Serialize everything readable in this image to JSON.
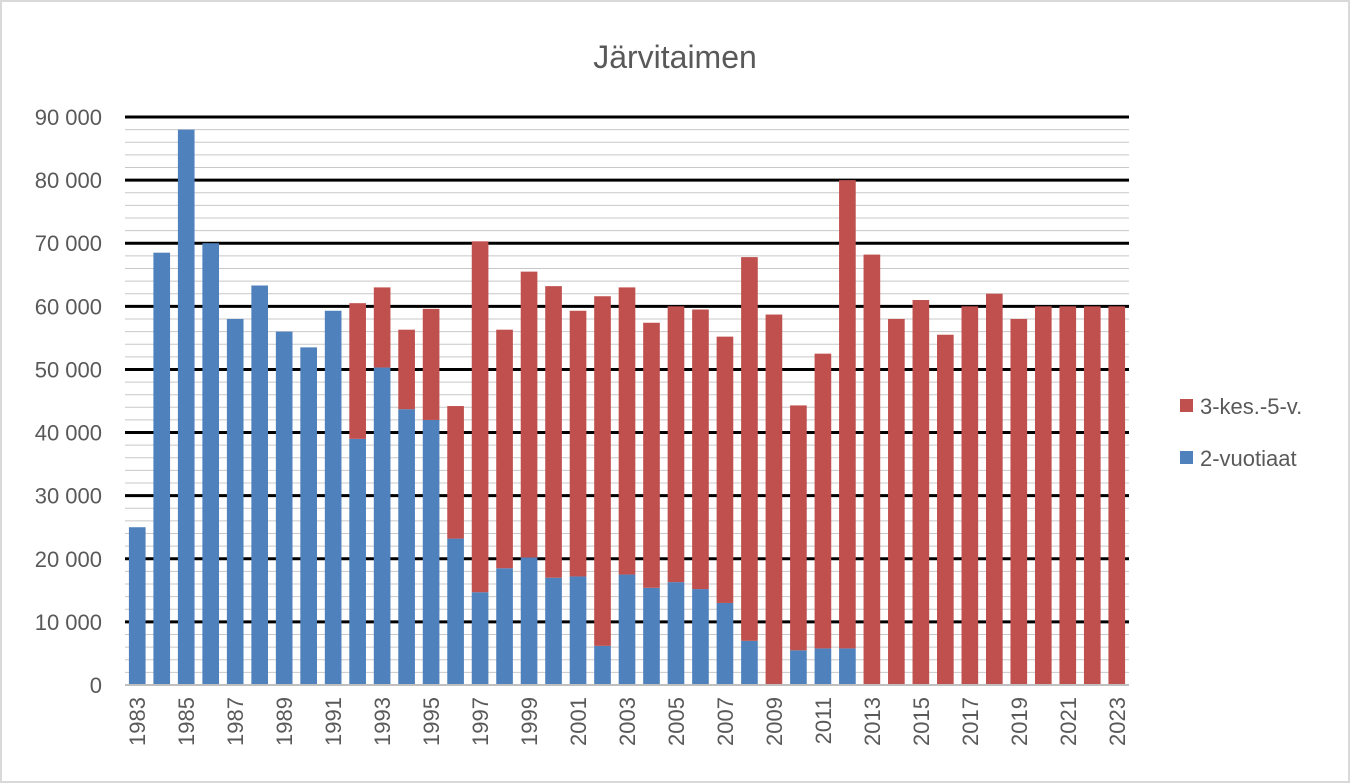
{
  "chart_data": {
    "type": "bar",
    "stacked": true,
    "title": "Järvitaimen",
    "xlabel": "",
    "ylabel": "",
    "ylim": [
      0,
      90000
    ],
    "y_major_step": 10000,
    "y_minor_step": 2000,
    "y_tick_labels": [
      "0",
      "10 000",
      "20 000",
      "30 000",
      "40 000",
      "50 000",
      "60 000",
      "70 000",
      "80 000",
      "90 000"
    ],
    "grid": true,
    "legend_position": "right",
    "categories": [
      "1983",
      "1984",
      "1985",
      "1986",
      "1987",
      "1988",
      "1989",
      "1990",
      "1991",
      "1992",
      "1993",
      "1994",
      "1995",
      "1996",
      "1997",
      "1998",
      "1999",
      "2000",
      "2001",
      "2002",
      "2003",
      "2004",
      "2005",
      "2006",
      "2007",
      "2008",
      "2009",
      "2010",
      "2011",
      "2012",
      "2013",
      "2014",
      "2015",
      "2016",
      "2017",
      "2018",
      "2019",
      "2020",
      "2021",
      "2022",
      "2023"
    ],
    "x_tick_labels": [
      "1983",
      "1985",
      "1987",
      "1989",
      "1991",
      "1993",
      "1995",
      "1997",
      "1999",
      "2001",
      "2003",
      "2005",
      "2007",
      "2009",
      "2011",
      "2013",
      "2015",
      "2017",
      "2019",
      "2021",
      "2023"
    ],
    "series": [
      {
        "name": "2-vuotiaat",
        "color": "#4f81bd",
        "values": [
          25000,
          68500,
          88000,
          70000,
          58000,
          63300,
          56000,
          53500,
          59300,
          39000,
          50300,
          43700,
          42000,
          23200,
          14700,
          18500,
          20200,
          17000,
          17200,
          6200,
          17500,
          15400,
          16300,
          15200,
          13000,
          7000,
          0,
          5500,
          5800,
          5800,
          0,
          0,
          0,
          0,
          0,
          0,
          0,
          0,
          0,
          0,
          0
        ]
      },
      {
        "name": "3-kes.-5-v.",
        "color": "#c0504d",
        "values": [
          0,
          0,
          0,
          0,
          0,
          0,
          0,
          0,
          0,
          21500,
          12700,
          12600,
          17600,
          21000,
          55600,
          37800,
          45300,
          46200,
          42100,
          55400,
          45500,
          42000,
          43700,
          44300,
          42200,
          60800,
          58700,
          38800,
          46700,
          74200,
          68200,
          58000,
          61000,
          55500,
          60000,
          62000,
          58000,
          60000,
          60000,
          60000,
          60000
        ]
      }
    ]
  }
}
